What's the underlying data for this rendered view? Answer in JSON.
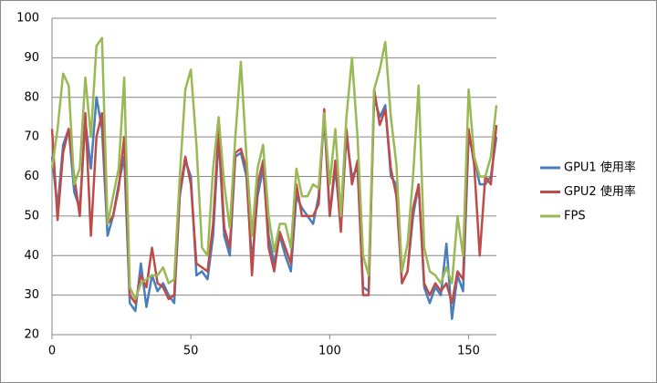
{
  "chart_data": {
    "type": "line",
    "x": [
      0,
      2,
      4,
      6,
      8,
      10,
      12,
      14,
      16,
      18,
      20,
      22,
      24,
      26,
      28,
      30,
      32,
      34,
      36,
      38,
      40,
      42,
      44,
      46,
      48,
      50,
      52,
      54,
      56,
      58,
      60,
      62,
      64,
      66,
      68,
      70,
      72,
      74,
      76,
      78,
      80,
      82,
      84,
      86,
      88,
      90,
      92,
      94,
      96,
      98,
      100,
      102,
      104,
      106,
      108,
      110,
      112,
      114,
      116,
      118,
      120,
      122,
      124,
      126,
      128,
      130,
      132,
      134,
      136,
      138,
      140,
      142,
      144,
      146,
      148,
      150,
      152,
      154,
      156,
      158,
      160
    ],
    "series": [
      {
        "name": "GPU1 使用率",
        "color": "#4a7ebb",
        "values": [
          65,
          52,
          68,
          72,
          56,
          52,
          74,
          62,
          80,
          72,
          45,
          50,
          58,
          65,
          28,
          26,
          38,
          27,
          35,
          31,
          33,
          30,
          28,
          55,
          64,
          60,
          35,
          36,
          34,
          45,
          70,
          45,
          40,
          65,
          66,
          60,
          38,
          55,
          62,
          45,
          38,
          45,
          40,
          36,
          55,
          52,
          50,
          48,
          55,
          75,
          50,
          62,
          48,
          70,
          60,
          62,
          32,
          31,
          80,
          75,
          78,
          60,
          58,
          33,
          36,
          50,
          58,
          32,
          28,
          32,
          30,
          43,
          24,
          35,
          31,
          70,
          65,
          58,
          58,
          60,
          70
        ]
      },
      {
        "name": "GPU2 使用率",
        "color": "#be4b48",
        "values": [
          72,
          49,
          66,
          72,
          60,
          50,
          76,
          45,
          70,
          76,
          48,
          50,
          57,
          70,
          30,
          28,
          35,
          32,
          42,
          33,
          32,
          29,
          30,
          56,
          65,
          58,
          38,
          37,
          36,
          48,
          72,
          47,
          42,
          66,
          67,
          62,
          35,
          58,
          64,
          42,
          36,
          46,
          42,
          38,
          58,
          50,
          50,
          50,
          53,
          77,
          50,
          64,
          46,
          72,
          58,
          64,
          30,
          30,
          82,
          73,
          77,
          62,
          55,
          33,
          36,
          52,
          58,
          33,
          30,
          33,
          31,
          33,
          28,
          36,
          34,
          72,
          63,
          40,
          60,
          58,
          73
        ]
      },
      {
        "name": "FPS",
        "color": "#98b954",
        "values": [
          62,
          72,
          86,
          83,
          58,
          62,
          85,
          70,
          93,
          95,
          48,
          55,
          62,
          85,
          32,
          29,
          33,
          34,
          35,
          35,
          37,
          33,
          34,
          60,
          82,
          87,
          68,
          42,
          40,
          62,
          75,
          58,
          47,
          70,
          89,
          65,
          45,
          62,
          68,
          50,
          41,
          48,
          48,
          42,
          62,
          55,
          55,
          58,
          57,
          76,
          58,
          72,
          50,
          75,
          90,
          70,
          40,
          35,
          82,
          87,
          94,
          75,
          63,
          36,
          43,
          60,
          83,
          42,
          36,
          35,
          33,
          37,
          33,
          50,
          40,
          82,
          65,
          60,
          60,
          65,
          78
        ]
      }
    ],
    "xlim": [
      0,
      160
    ],
    "xticks": [
      0,
      50,
      100,
      150
    ],
    "ylim": [
      20,
      100
    ],
    "yticks": [
      20,
      30,
      40,
      50,
      60,
      70,
      80,
      90,
      100
    ],
    "grid": true,
    "legend": "right"
  }
}
